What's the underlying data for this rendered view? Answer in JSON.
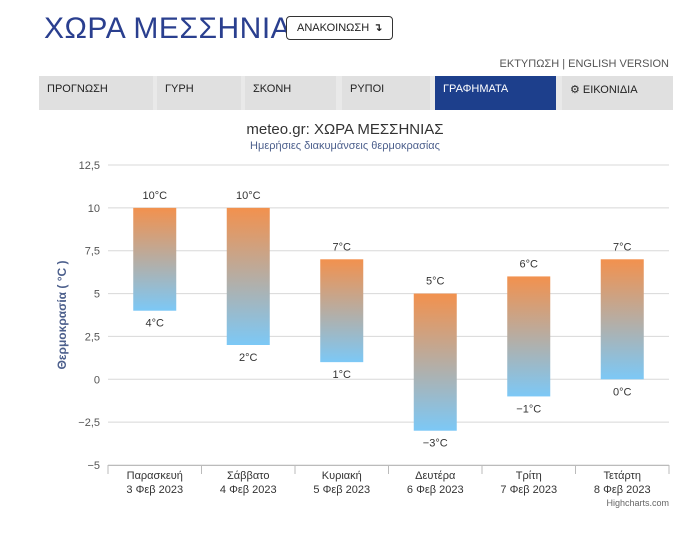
{
  "header": {
    "title": "ΧΩΡΑ ΜΕΣΣΗΝΙΑΣ",
    "announce_label": "ΑΝΑΚΟΙΝΩΣΗ",
    "print_label": "ΕΚΤΥΠΩΣΗ",
    "separator": " | ",
    "english_label": "ENGLISH VERSION"
  },
  "tabs": [
    {
      "label": "ΠΡΟΓΝΩΣΗ"
    },
    {
      "label": "ΓΥΡΗ"
    },
    {
      "label": "ΣΚΟΝΗ"
    },
    {
      "label": "ΡΥΠΟΙ"
    },
    {
      "label": "ΓΡΑΦΗΜΑΤΑ",
      "active": true
    },
    {
      "label": "ΕΙΚΟΝΙΔΙΑ",
      "icon": "gear-icon"
    }
  ],
  "credits": "Highcharts.com",
  "chart_data": {
    "type": "columnrange",
    "title": "meteo.gr: ΧΩΡΑ ΜΕΣΣΗΝΙΑΣ",
    "subtitle": "Ημερήσιες διακυμάνσεις θερμοκρασίας",
    "ylabel": "Θερμοκρασία ( °C )",
    "ylim": [
      -5,
      12.5
    ],
    "yticks": [
      "12,5",
      "10",
      "7,5",
      "5",
      "2,5",
      "0",
      "−2,5",
      "−5"
    ],
    "categories": [
      {
        "day": "Παρασκευή",
        "date": "3 Φεβ 2023"
      },
      {
        "day": "Σάββατο",
        "date": "4 Φεβ 2023"
      },
      {
        "day": "Κυριακή",
        "date": "5 Φεβ 2023"
      },
      {
        "day": "Δευτέρα",
        "date": "6 Φεβ 2023"
      },
      {
        "day": "Τρίτη",
        "date": "7 Φεβ 2023"
      },
      {
        "day": "Τετάρτη",
        "date": "8 Φεβ 2023"
      }
    ],
    "high": [
      10,
      10,
      7,
      5,
      6,
      7
    ],
    "low": [
      4,
      2,
      1,
      -3,
      -1,
      0
    ],
    "high_labels": [
      "10°C",
      "10°C",
      "7°C",
      "5°C",
      "6°C",
      "7°C"
    ],
    "low_labels": [
      "4°C",
      "2°C",
      "1°C",
      "−3°C",
      "−1°C",
      "0°C"
    ],
    "colors": {
      "warm": "#f2914e",
      "cool": "#7cc8f6",
      "grid": "#d8d8d8"
    },
    "grid": true
  }
}
